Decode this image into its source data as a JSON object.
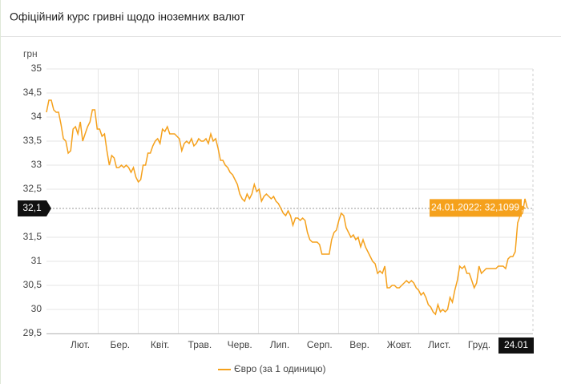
{
  "chart_data": {
    "type": "line",
    "title": "Офіційний курс гривні щодо іноземних валют",
    "y_label": "грн",
    "x_labels": [
      "Лют.",
      "Бер.",
      "Квіт.",
      "Трав.",
      "Черв.",
      "Лип.",
      "Серп.",
      "Вер.",
      "Жовт.",
      "Лист.",
      "Груд."
    ],
    "x_last_label": "24.01",
    "ylim": [
      29.5,
      35
    ],
    "yticks": [
      {
        "value": 29.5,
        "label": "29,5"
      },
      30,
      {
        "value": 30.5,
        "label": "30,5"
      },
      31,
      {
        "value": 31.5,
        "label": "31,5"
      },
      32,
      {
        "value": 32.5,
        "label": "32,5"
      },
      33,
      {
        "value": 33.5,
        "label": "33,5"
      },
      34,
      {
        "value": 34.5,
        "label": "34,5"
      },
      35
    ],
    "grid": true,
    "crosshair": {
      "value": 32.1,
      "label": "32,1"
    },
    "tooltip": "24.01.2022: 32,1099",
    "series": [
      {
        "name": "Євро (за 1 одиницю)",
        "color": "#f5a11c",
        "values": [
          34.1,
          34.35,
          34.35,
          34.15,
          34.1,
          34.1,
          33.85,
          33.55,
          33.5,
          33.25,
          33.3,
          33.75,
          33.8,
          33.65,
          33.9,
          33.5,
          33.65,
          33.8,
          33.9,
          34.15,
          34.15,
          33.75,
          33.75,
          33.6,
          33.65,
          33.3,
          33.0,
          33.2,
          33.15,
          32.95,
          32.95,
          33.0,
          32.95,
          33.0,
          32.95,
          32.85,
          32.95,
          32.75,
          32.65,
          32.7,
          33.0,
          33.0,
          33.25,
          33.25,
          33.4,
          33.5,
          33.55,
          33.45,
          33.75,
          33.7,
          33.8,
          33.65,
          33.65,
          33.65,
          33.6,
          33.55,
          33.3,
          33.45,
          33.5,
          33.45,
          33.55,
          33.4,
          33.45,
          33.55,
          33.5,
          33.5,
          33.55,
          33.45,
          33.65,
          33.5,
          33.55,
          33.35,
          33.1,
          33.1,
          33.0,
          32.95,
          32.85,
          32.8,
          32.7,
          32.6,
          32.4,
          32.3,
          32.25,
          32.4,
          32.3,
          32.4,
          32.6,
          32.45,
          32.5,
          32.25,
          32.35,
          32.4,
          32.35,
          32.3,
          32.35,
          32.25,
          32.2,
          32.1,
          32.0,
          31.95,
          32.05,
          31.95,
          31.75,
          31.9,
          31.9,
          31.85,
          31.9,
          31.85,
          31.6,
          31.45,
          31.4,
          31.4,
          31.4,
          31.35,
          31.15,
          31.15,
          31.15,
          31.15,
          31.45,
          31.6,
          31.65,
          31.85,
          32.0,
          31.95,
          31.7,
          31.6,
          31.5,
          31.55,
          31.45,
          31.5,
          31.3,
          31.45,
          31.3,
          31.2,
          31.1,
          31.0,
          30.95,
          30.75,
          30.8,
          30.75,
          30.9,
          30.45,
          30.45,
          30.5,
          30.5,
          30.45,
          30.45,
          30.5,
          30.55,
          30.6,
          30.55,
          30.6,
          30.55,
          30.45,
          30.4,
          30.3,
          30.35,
          30.25,
          30.1,
          30.05,
          29.95,
          29.9,
          30.1,
          29.95,
          30.0,
          29.95,
          30.0,
          30.25,
          30.15,
          30.4,
          30.6,
          30.9,
          30.85,
          30.9,
          30.75,
          30.75,
          30.6,
          30.45,
          30.55,
          30.9,
          30.75,
          30.8,
          30.85,
          30.85,
          30.85,
          30.85,
          30.85,
          30.9,
          30.9,
          30.9,
          30.85,
          31.05,
          31.1,
          31.1,
          31.2,
          31.8,
          31.95,
          32.0,
          32.3,
          32.11
        ]
      }
    ]
  }
}
